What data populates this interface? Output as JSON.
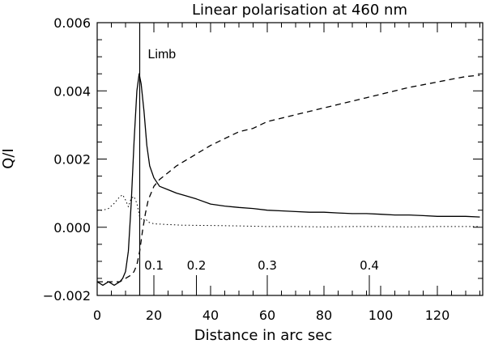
{
  "chart_data": {
    "type": "line",
    "title": "Linear polarisation at 460 nm",
    "xlabel": "Distance in arc sec",
    "ylabel": "Q/I",
    "xlim": [
      0,
      136
    ],
    "ylim": [
      -0.002,
      0.006
    ],
    "xticks": [
      0,
      20,
      40,
      60,
      80,
      100,
      120
    ],
    "xtick_labels": [
      "0",
      "20",
      "40",
      "60",
      "80",
      "100",
      "120"
    ],
    "yticks": [
      -0.002,
      0.0,
      0.002,
      0.004,
      0.006
    ],
    "ytick_labels": [
      "−0.002",
      "0.000",
      "0.002",
      "0.004",
      "0.006"
    ],
    "grid": false,
    "series": [
      {
        "style": "solid",
        "x": [
          0,
          2,
          4,
          6,
          8,
          9,
          10,
          11,
          12,
          13,
          14,
          14.8,
          15.5,
          16.5,
          17.5,
          18.5,
          20,
          22,
          25,
          28,
          31,
          35,
          40,
          45,
          50,
          55,
          60,
          65,
          70,
          75,
          80,
          85,
          90,
          95,
          100,
          105,
          110,
          115,
          120,
          125,
          130,
          135
        ],
        "y": [
          -0.0016,
          -0.0017,
          -0.0016,
          -0.0017,
          -0.0016,
          -0.0015,
          -0.0013,
          -0.0007,
          0.0007,
          0.0025,
          0.004,
          0.0045,
          0.0042,
          0.0034,
          0.0024,
          0.0018,
          0.00145,
          0.0012,
          0.0011,
          0.001,
          0.00093,
          0.00083,
          0.00068,
          0.00062,
          0.00058,
          0.00055,
          0.0005,
          0.00048,
          0.00046,
          0.00044,
          0.00044,
          0.00042,
          0.0004,
          0.0004,
          0.00038,
          0.00036,
          0.00036,
          0.00034,
          0.00032,
          0.00032,
          0.00032,
          0.0003
        ]
      },
      {
        "style": "dashed",
        "x": [
          0,
          4,
          8,
          10,
          12,
          13,
          14,
          15,
          16,
          17,
          18,
          20,
          22,
          25,
          28,
          32,
          36,
          40,
          45,
          50,
          55,
          60,
          65,
          70,
          75,
          80,
          85,
          90,
          95,
          100,
          105,
          110,
          115,
          120,
          125,
          130,
          135
        ],
        "y": [
          -0.0016,
          -0.0016,
          -0.0016,
          -0.0015,
          -0.0014,
          -0.0013,
          -0.0011,
          -0.0007,
          -0.0001,
          0.0004,
          0.0008,
          0.0012,
          0.0014,
          0.0016,
          0.0018,
          0.002,
          0.0022,
          0.0024,
          0.0026,
          0.0028,
          0.0029,
          0.0031,
          0.0032,
          0.0033,
          0.0034,
          0.0035,
          0.0036,
          0.0037,
          0.0038,
          0.0039,
          0.004,
          0.0041,
          0.00418,
          0.00426,
          0.00434,
          0.00442,
          0.00446
        ]
      },
      {
        "style": "dotted",
        "x": [
          0,
          2,
          4,
          6,
          8,
          9,
          10,
          11,
          12,
          13,
          14,
          15,
          16,
          17,
          18,
          20,
          25,
          30,
          40,
          50,
          60,
          70,
          80,
          90,
          100,
          110,
          120,
          130,
          135
        ],
        "y": [
          0.0005,
          0.0005,
          0.00055,
          0.0007,
          0.0009,
          0.00095,
          0.0008,
          0.0006,
          0.00085,
          0.0009,
          0.0007,
          0.0003,
          0.0002,
          0.00025,
          0.00015,
          0.0001,
          8e-05,
          6e-05,
          5e-05,
          4e-05,
          2e-05,
          2e-05,
          1e-05,
          2e-05,
          2e-05,
          1e-05,
          2e-05,
          2e-05,
          2e-05
        ]
      }
    ],
    "vline": {
      "x": 15,
      "label": "Limb"
    },
    "annotations": [
      {
        "x": 20,
        "label": "0.1"
      },
      {
        "x": 35,
        "label": "0.2"
      },
      {
        "x": 60,
        "label": "0.3"
      },
      {
        "x": 96,
        "label": "0.4"
      }
    ]
  }
}
